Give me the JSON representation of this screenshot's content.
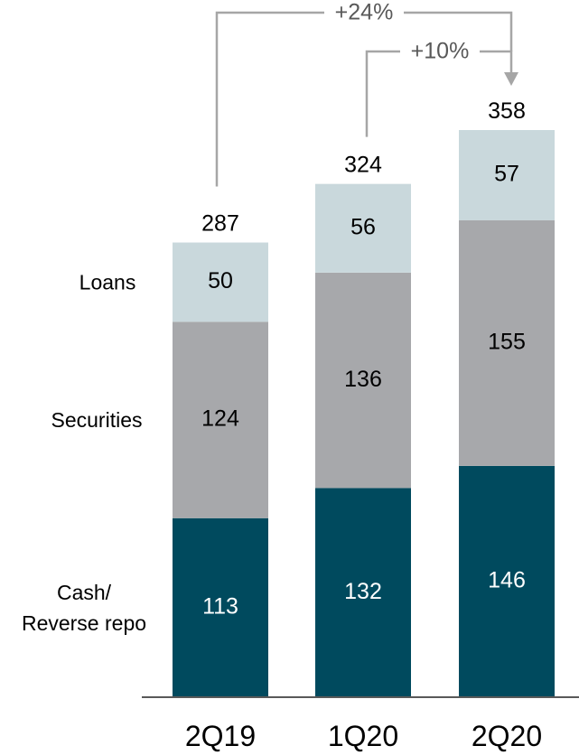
{
  "chart_data": {
    "type": "bar",
    "stacked": true,
    "categories": [
      "2Q19",
      "1Q20",
      "2Q20"
    ],
    "series": [
      {
        "name": "Cash/ Reverse repo",
        "label_lines": [
          "Cash/",
          "Reverse repo"
        ],
        "color": "#004a5e",
        "text_color": "#ffffff",
        "values": [
          113,
          132,
          146
        ]
      },
      {
        "name": "Securities",
        "label_lines": [
          "Securities"
        ],
        "color": "#a7a8ab",
        "text_color": "#000000",
        "values": [
          124,
          136,
          155
        ]
      },
      {
        "name": "Loans",
        "label_lines": [
          "Loans"
        ],
        "color": "#c9d8dc",
        "text_color": "#000000",
        "values": [
          50,
          56,
          57
        ]
      }
    ],
    "totals": [
      287,
      324,
      358
    ],
    "annotations": [
      {
        "text": "+24%",
        "from": "2Q19",
        "to": "2Q20"
      },
      {
        "text": "+10%",
        "from": "1Q20",
        "to": "2Q20"
      }
    ],
    "axis_line_color": "#595959",
    "annotation_color": "#a6a6a6",
    "title": "",
    "xlabel": "",
    "ylabel": "",
    "ylim": [
      0,
      358
    ],
    "grid": false,
    "legend": "left, stacked labels beside first bar"
  }
}
